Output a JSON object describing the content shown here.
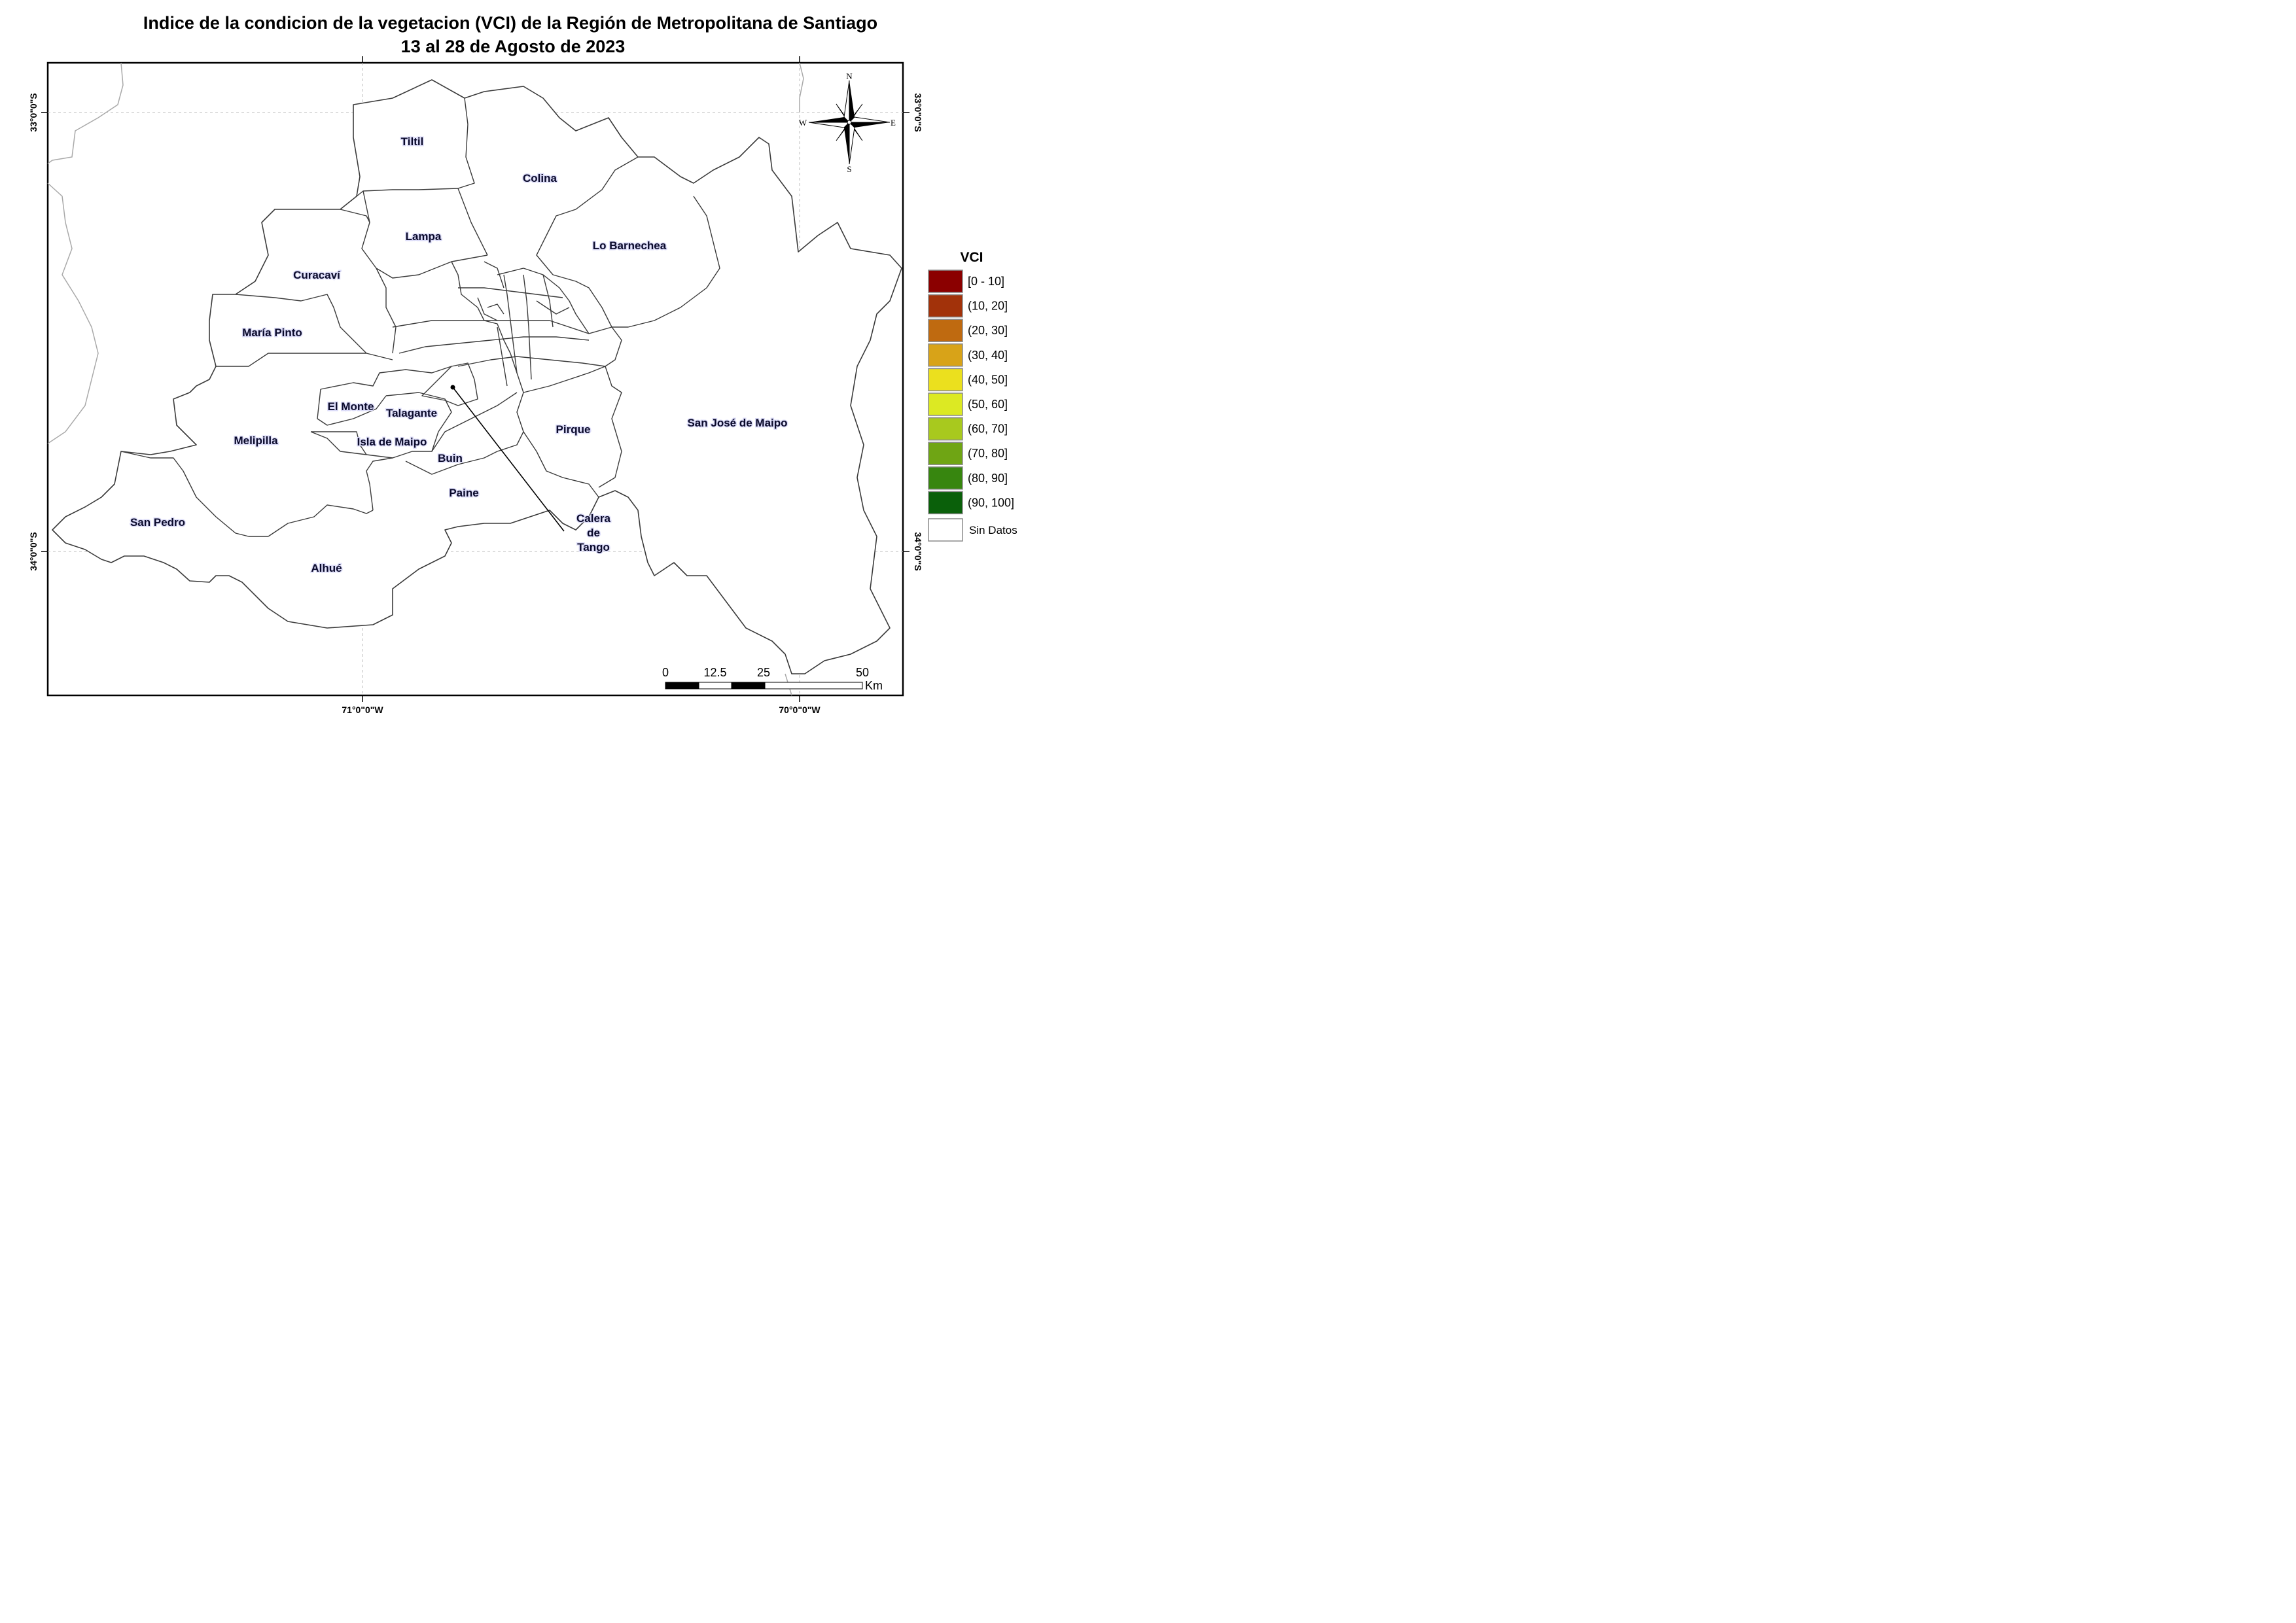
{
  "title": {
    "line1": "Indice de la condicion de la vegetacion (VCI) de la Región de Metropolitana de Santiago",
    "line2": "13 al 28 de Agosto de 2023"
  },
  "graticule": {
    "lat_top": "33°0\"0\"S",
    "lat_bottom": "34°0\"0\"S",
    "lon_left": "71°0\"0\"W",
    "lon_right": "70°0\"0\"W"
  },
  "comunas": {
    "tiltil": "Tiltil",
    "colina": "Colina",
    "lampa": "Lampa",
    "lo_barnechea": "Lo Barnechea",
    "curacavi": "Curacaví",
    "maria_pinto": "María Pinto",
    "el_monte": "El Monte",
    "talagante": "Talagante",
    "melipilla": "Melipilla",
    "isla_de_maipo": "Isla de Maipo",
    "buin": "Buin",
    "pirque": "Pirque",
    "san_jose_de_maipo": "San José de Maipo",
    "paine": "Paine",
    "san_pedro": "San Pedro",
    "alhue": "Alhué",
    "calera_line1": "Calera",
    "calera_line2": "de",
    "calera_line3": "Tango"
  },
  "compass": {
    "n": "N",
    "s": "S",
    "e": "E",
    "w": "W"
  },
  "legend": {
    "title": "VCI",
    "classes": [
      {
        "label": "[0 - 10]",
        "color": "#8b0000"
      },
      {
        "label": "(10, 20]",
        "color": "#a2320a"
      },
      {
        "label": "(20, 30]",
        "color": "#bf6a10"
      },
      {
        "label": "(30, 40]",
        "color": "#d8a318"
      },
      {
        "label": "(40, 50]",
        "color": "#ebe01e"
      },
      {
        "label": "(50, 60]",
        "color": "#dce923"
      },
      {
        "label": "(60, 70]",
        "color": "#a8c91e"
      },
      {
        "label": "(70, 80]",
        "color": "#6fa514"
      },
      {
        "label": "(80, 90]",
        "color": "#37860f"
      },
      {
        "label": "(90, 100]",
        "color": "#0a600a"
      }
    ],
    "nodata": {
      "label": "Sin Datos",
      "color": "#ffffff"
    }
  },
  "scalebar": {
    "ticks": [
      "0",
      "12.5",
      "25",
      "50"
    ],
    "unit": "Km"
  }
}
